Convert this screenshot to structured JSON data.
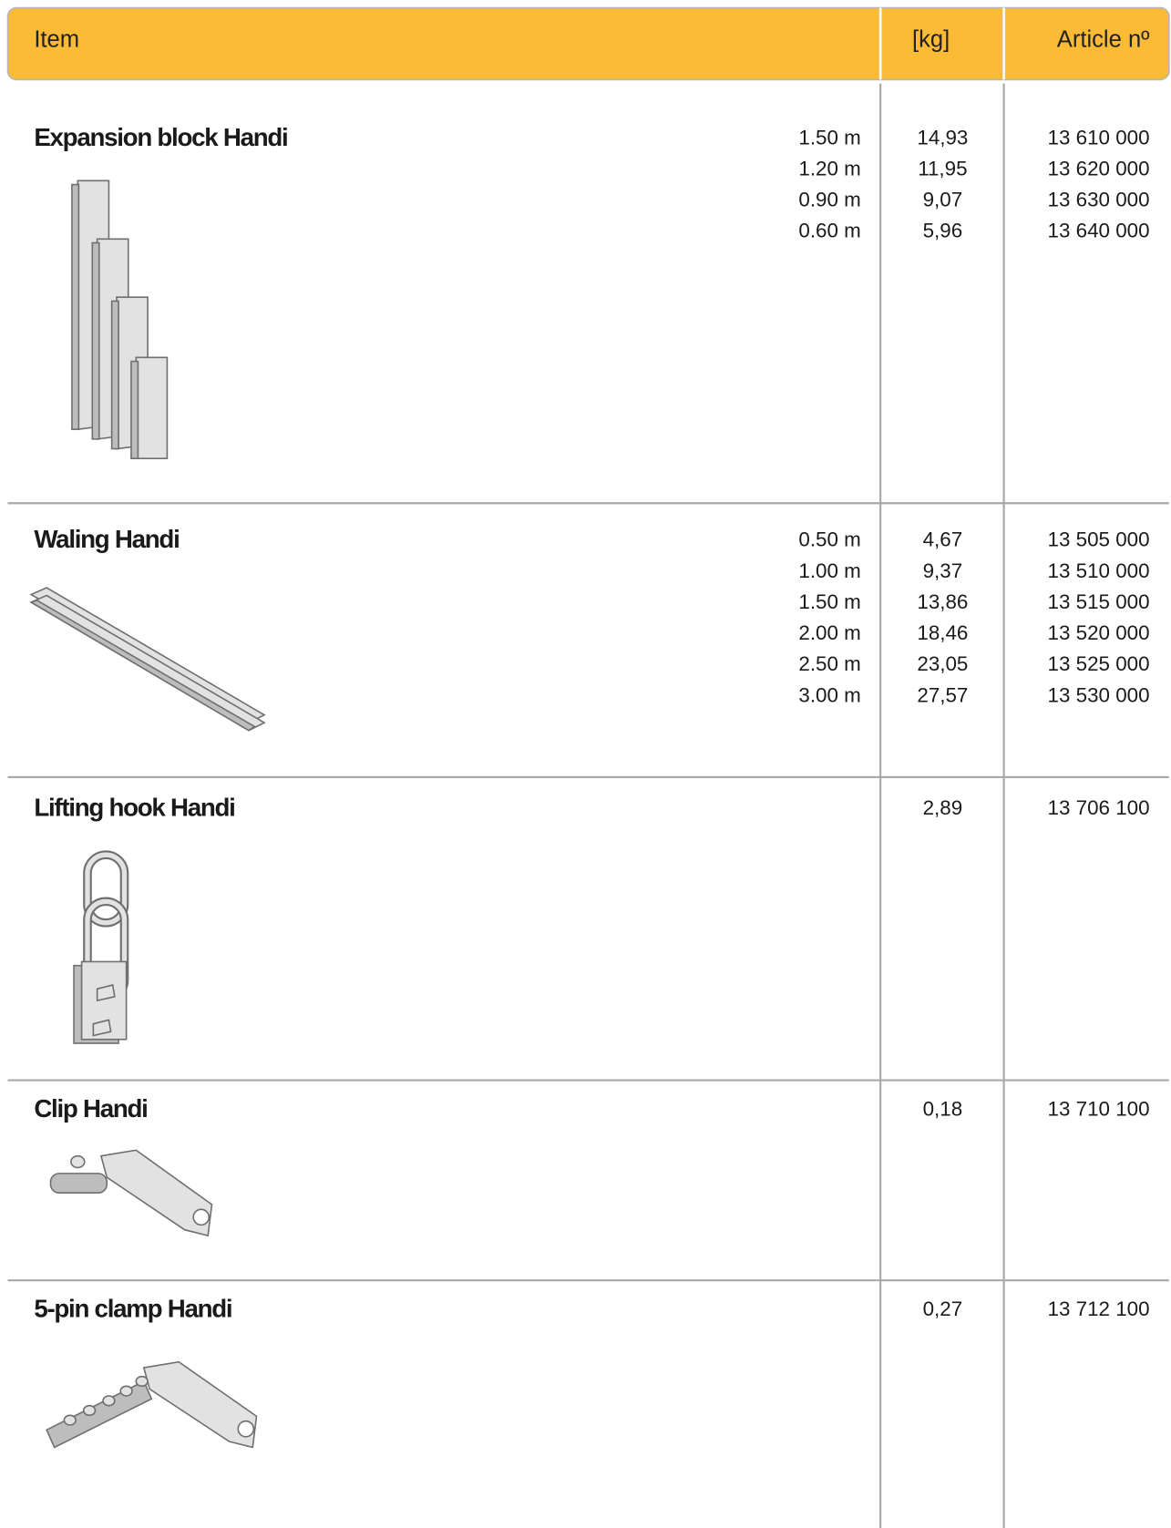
{
  "header": {
    "item": "Item",
    "weight": "[kg]",
    "article": "Article nº"
  },
  "rows": [
    {
      "name": "Expansion block Handi",
      "variants": [
        {
          "length": "1.50 m",
          "weight": "14,93",
          "article": "13 610 000"
        },
        {
          "length": "1.20 m",
          "weight": "11,95",
          "article": "13 620 000"
        },
        {
          "length": "0.90 m",
          "weight": "9,07",
          "article": "13 630 000"
        },
        {
          "length": "0.60 m",
          "weight": "5,96",
          "article": "13 640 000"
        }
      ]
    },
    {
      "name": "Waling Handi",
      "variants": [
        {
          "length": "0.50 m",
          "weight": "4,67",
          "article": "13 505 000"
        },
        {
          "length": "1.00 m",
          "weight": "9,37",
          "article": "13 510 000"
        },
        {
          "length": "1.50 m",
          "weight": "13,86",
          "article": "13 515 000"
        },
        {
          "length": "2.00 m",
          "weight": "18,46",
          "article": "13 520 000"
        },
        {
          "length": "2.50 m",
          "weight": "23,05",
          "article": "13 525 000"
        },
        {
          "length": "3.00 m",
          "weight": "27,57",
          "article": "13 530 000"
        }
      ]
    },
    {
      "name": "Lifting hook Handi",
      "variants": [
        {
          "weight": "2,89",
          "article": "13 706 100"
        }
      ]
    },
    {
      "name": "Clip Handi",
      "variants": [
        {
          "weight": "0,18",
          "article": "13 710 100"
        }
      ]
    },
    {
      "name": "5-pin clamp Handi",
      "variants": [
        {
          "weight": "0,27",
          "article": "13 712 100"
        }
      ]
    }
  ]
}
